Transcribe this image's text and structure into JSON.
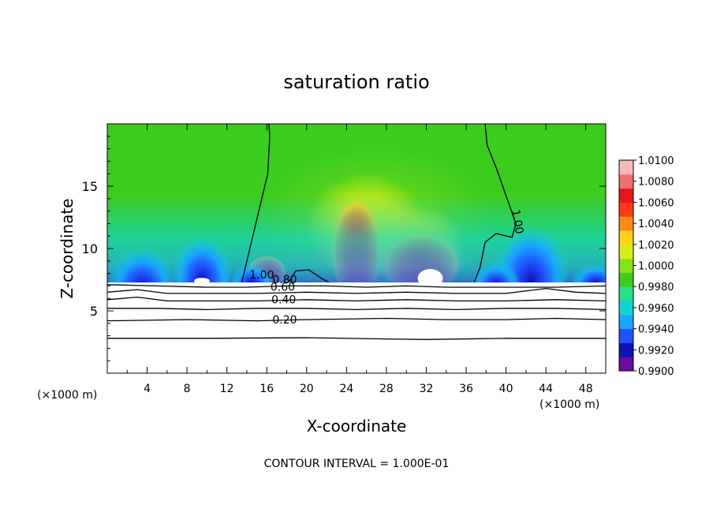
{
  "chart_data": {
    "type": "heatmap",
    "title": "saturation ratio",
    "xlabel": "X-coordinate",
    "ylabel": "Z-coordinate",
    "x_unit": "(×1000 m)",
    "x_unit_right": "(×1000 m)",
    "xlim": [
      0,
      50
    ],
    "ylim": [
      0,
      20
    ],
    "x_ticks": [
      4,
      8,
      12,
      16,
      20,
      24,
      28,
      32,
      36,
      40,
      44,
      48
    ],
    "y_ticks": [
      5,
      10,
      15
    ],
    "footer": "CONTOUR INTERVAL = 1.000E-01",
    "colorbar": {
      "labels": [
        "1.0100",
        "1.0080",
        "1.0060",
        "1.0040",
        "1.0020",
        "1.0000",
        "0.9980",
        "0.9960",
        "0.9940",
        "0.9920",
        "0.9900"
      ],
      "colors": [
        "#6a0a9e",
        "#1010b8",
        "#1f52ff",
        "#1aa6ff",
        "#10d4d4",
        "#28e08a",
        "#3ccc1e",
        "#86e01a",
        "#d8ec1a",
        "#ffd21a",
        "#ff8a14",
        "#ff3a14",
        "#e8141a",
        "#f07070",
        "#f7b8bc"
      ]
    },
    "contours": [
      {
        "label": "1.00",
        "points": [
          [
            13.5,
            7.3
          ],
          [
            14.3,
            10
          ],
          [
            15.2,
            13
          ],
          [
            16.1,
            16
          ],
          [
            16.3,
            19
          ],
          [
            16.2,
            20
          ]
        ]
      },
      {
        "label": "1.00",
        "points": [
          [
            18.2,
            7.3
          ],
          [
            18.9,
            8.2
          ],
          [
            20.2,
            8.3
          ],
          [
            21.5,
            7.6
          ],
          [
            22.2,
            7.3
          ]
        ]
      },
      {
        "label": "1.00",
        "points": [
          [
            36.8,
            7.3
          ],
          [
            37.4,
            8.5
          ],
          [
            37.9,
            10.5
          ],
          [
            39.0,
            11.2
          ],
          [
            40.6,
            10.9
          ],
          [
            41.0,
            12.0
          ],
          [
            40.1,
            14.0
          ],
          [
            39.1,
            16.3
          ],
          [
            38.1,
            18.3
          ],
          [
            37.9,
            20
          ]
        ]
      },
      {
        "label": "0.80",
        "points": [
          [
            0,
            7.1
          ],
          [
            5,
            7.0
          ],
          [
            10,
            6.9
          ],
          [
            14,
            6.9
          ],
          [
            18,
            7.0
          ],
          [
            22,
            7.0
          ],
          [
            26,
            6.9
          ],
          [
            30,
            7.0
          ],
          [
            34,
            6.9
          ],
          [
            40,
            6.9
          ],
          [
            45,
            6.9
          ],
          [
            50,
            7.0
          ]
        ]
      },
      {
        "label": "0.60",
        "points": [
          [
            0,
            6.5
          ],
          [
            3,
            6.7
          ],
          [
            6,
            6.4
          ],
          [
            10,
            6.4
          ],
          [
            15,
            6.4
          ],
          [
            20,
            6.5
          ],
          [
            25,
            6.4
          ],
          [
            30,
            6.5
          ],
          [
            35,
            6.4
          ],
          [
            40,
            6.4
          ],
          [
            44,
            6.8
          ],
          [
            47,
            6.5
          ],
          [
            50,
            6.4
          ]
        ]
      },
      {
        "label": "0.40",
        "points": [
          [
            0,
            5.9
          ],
          [
            3,
            6.1
          ],
          [
            6,
            5.8
          ],
          [
            10,
            5.8
          ],
          [
            15,
            5.8
          ],
          [
            20,
            5.9
          ],
          [
            25,
            5.8
          ],
          [
            30,
            5.9
          ],
          [
            35,
            5.8
          ],
          [
            40,
            5.8
          ],
          [
            45,
            5.9
          ],
          [
            50,
            5.8
          ]
        ]
      },
      {
        "label": "",
        "points": [
          [
            0,
            5.2
          ],
          [
            5,
            5.2
          ],
          [
            10,
            5.1
          ],
          [
            15,
            5.2
          ],
          [
            20,
            5.2
          ],
          [
            25,
            5.1
          ],
          [
            30,
            5.2
          ],
          [
            35,
            5.1
          ],
          [
            40,
            5.2
          ],
          [
            45,
            5.2
          ],
          [
            50,
            5.1
          ]
        ]
      },
      {
        "label": "0.20",
        "points": [
          [
            0,
            4.2
          ],
          [
            8,
            4.3
          ],
          [
            15,
            4.2
          ],
          [
            20,
            4.3
          ],
          [
            28,
            4.4
          ],
          [
            34,
            4.3
          ],
          [
            40,
            4.3
          ],
          [
            45,
            4.4
          ],
          [
            50,
            4.3
          ]
        ]
      },
      {
        "label": "",
        "points": [
          [
            0,
            2.8
          ],
          [
            10,
            2.8
          ],
          [
            20,
            2.85
          ],
          [
            28,
            2.75
          ],
          [
            32,
            2.7
          ],
          [
            40,
            2.8
          ],
          [
            50,
            2.8
          ]
        ]
      }
    ]
  }
}
